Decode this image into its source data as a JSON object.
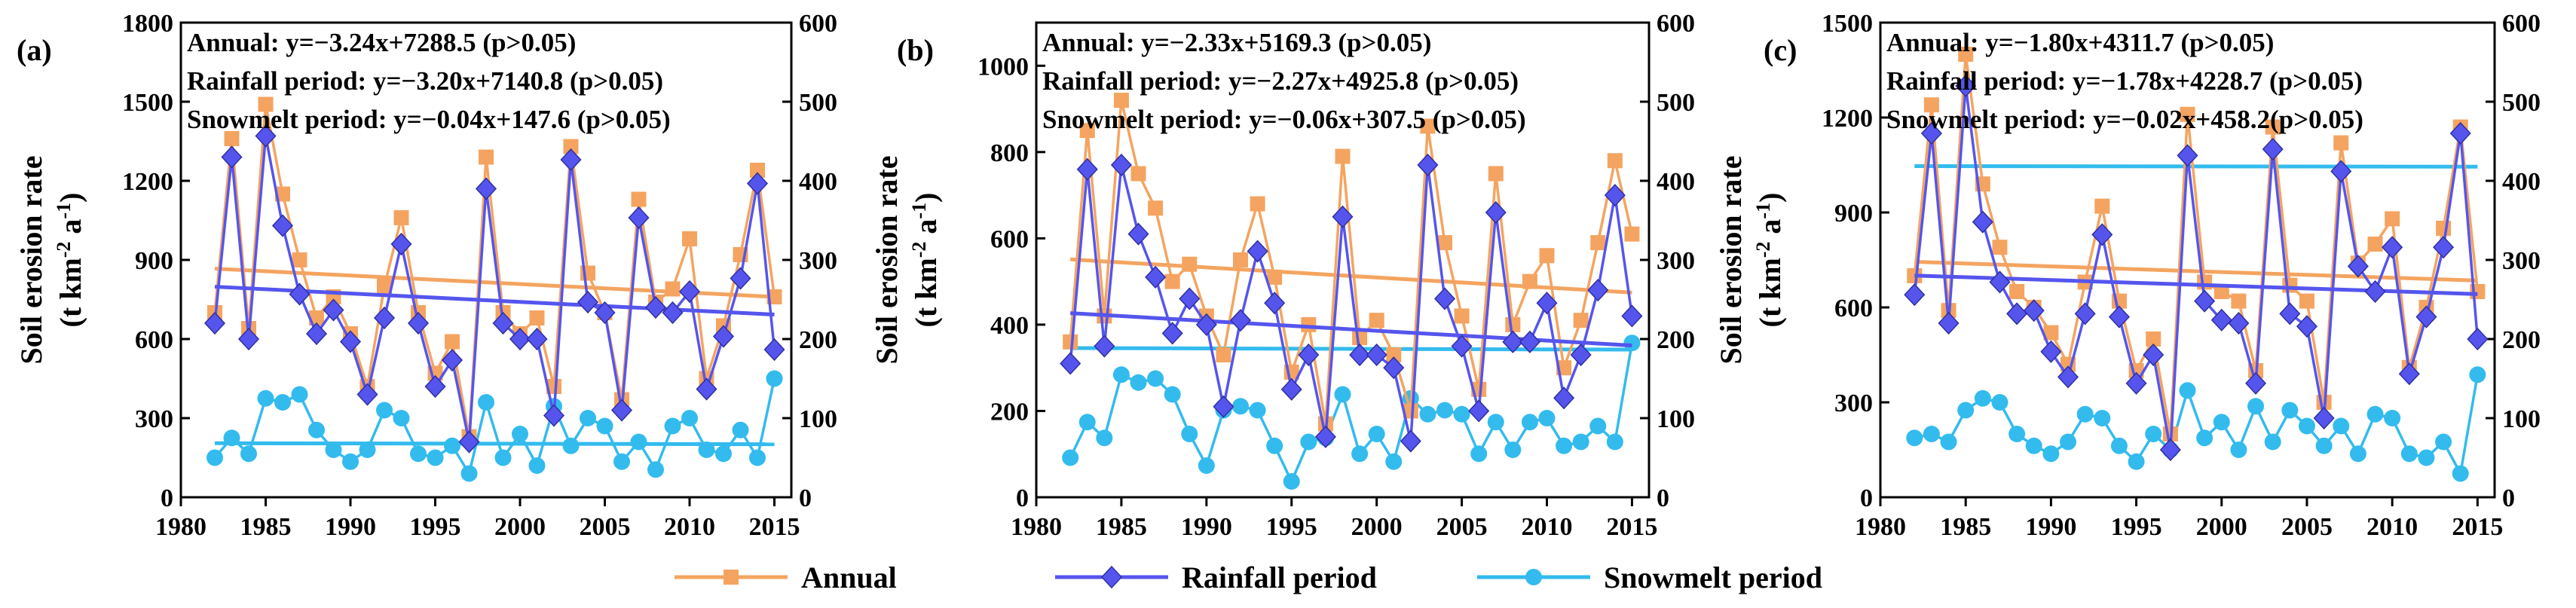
{
  "legend": {
    "annual": "Annual",
    "rainfall": "Rainfall period",
    "snowmelt": "Snowmelt period"
  },
  "colors": {
    "annual": "#F4A460",
    "rainfall": "#5555EE",
    "snowmelt": "#33BBEE"
  },
  "y_axis_label": {
    "line1": "Soil erosion rate",
    "line2": "(t km",
    "sup1": "-2",
    "mid": " a",
    "sup2": "-1",
    "end": ")"
  },
  "chart_data": [
    {
      "type": "line",
      "panel_label": "(a)",
      "annotations": [
        "Annual: y=−3.24x+7288.5 (p>0.05)",
        "Rainfall period: y=−3.20x+7140.8 (p>0.05)",
        "Snowmelt period: y=−0.04x+147.6 (p>0.05)"
      ],
      "x": [
        1982,
        1983,
        1984,
        1985,
        1986,
        1987,
        1988,
        1989,
        1990,
        1991,
        1992,
        1993,
        1994,
        1995,
        1996,
        1997,
        1998,
        1999,
        2000,
        2001,
        2002,
        2003,
        2004,
        2005,
        2006,
        2007,
        2008,
        2009,
        2010,
        2011,
        2012,
        2013,
        2014,
        2015
      ],
      "xlim": [
        1980,
        2016
      ],
      "xticks": [
        1980,
        1985,
        1990,
        1995,
        2000,
        2005,
        2010,
        2015
      ],
      "ylim": [
        0,
        1800
      ],
      "yticks": [
        0,
        300,
        600,
        900,
        1200,
        1500,
        1800
      ],
      "ylim_right": [
        0,
        600
      ],
      "yticks_right": [
        0,
        100,
        200,
        300,
        400,
        500,
        600
      ],
      "series": [
        {
          "name": "Annual",
          "axis": "left",
          "values": [
            700,
            1360,
            640,
            1490,
            1150,
            900,
            680,
            760,
            620,
            420,
            800,
            1060,
            700,
            470,
            590,
            230,
            1290,
            700,
            620,
            680,
            420,
            1330,
            850,
            700,
            370,
            1130,
            740,
            790,
            980,
            450,
            650,
            920,
            1240,
            760
          ],
          "trend": {
            "slope": -3.24,
            "intercept": 7288.5
          }
        },
        {
          "name": "Rainfall period",
          "axis": "left",
          "values": [
            660,
            1290,
            600,
            1370,
            1030,
            770,
            620,
            710,
            590,
            390,
            680,
            960,
            660,
            420,
            520,
            210,
            1170,
            660,
            600,
            600,
            310,
            1280,
            740,
            700,
            330,
            1060,
            720,
            700,
            780,
            410,
            610,
            830,
            1190,
            560
          ],
          "trend": {
            "slope": -3.2,
            "intercept": 7140.8
          }
        },
        {
          "name": "Snowmelt period",
          "axis": "right",
          "values": [
            50,
            75,
            55,
            125,
            120,
            130,
            85,
            60,
            45,
            60,
            110,
            100,
            55,
            50,
            65,
            30,
            120,
            50,
            80,
            40,
            115,
            65,
            100,
            90,
            45,
            70,
            35,
            90,
            100,
            60,
            55,
            85,
            50,
            150
          ],
          "trend": {
            "slope": -0.04,
            "intercept": 147.6
          }
        }
      ]
    },
    {
      "type": "line",
      "panel_label": "(b)",
      "annotations": [
        "Annual: y=−2.33x+5169.3 (p>0.05)",
        "Rainfall period: y=−2.27x+4925.8 (p>0.05)",
        "Snowmelt period: y=−0.06x+307.5 (p>0.05)"
      ],
      "x": [
        1982,
        1983,
        1984,
        1985,
        1986,
        1987,
        1988,
        1989,
        1990,
        1991,
        1992,
        1993,
        1994,
        1995,
        1996,
        1997,
        1998,
        1999,
        2000,
        2001,
        2002,
        2003,
        2004,
        2005,
        2006,
        2007,
        2008,
        2009,
        2010,
        2011,
        2012,
        2013,
        2014,
        2015
      ],
      "xlim": [
        1980,
        2016
      ],
      "xticks": [
        1980,
        1985,
        1990,
        1995,
        2000,
        2005,
        2010,
        2015
      ],
      "ylim": [
        0,
        1100
      ],
      "yticks": [
        0,
        200,
        400,
        600,
        800,
        1000
      ],
      "ylim_right": [
        0,
        600
      ],
      "yticks_right": [
        0,
        100,
        200,
        300,
        400,
        500,
        600
      ],
      "series": [
        {
          "name": "Annual",
          "axis": "left",
          "values": [
            360,
            850,
            420,
            920,
            750,
            670,
            500,
            540,
            420,
            330,
            550,
            680,
            510,
            290,
            400,
            170,
            790,
            370,
            410,
            330,
            200,
            860,
            590,
            420,
            250,
            750,
            400,
            500,
            560,
            300,
            410,
            590,
            780,
            610
          ],
          "trend": {
            "slope": -2.33,
            "intercept": 5169.3
          }
        },
        {
          "name": "Rainfall period",
          "axis": "left",
          "values": [
            310,
            760,
            350,
            770,
            610,
            510,
            380,
            460,
            400,
            210,
            410,
            570,
            450,
            250,
            330,
            140,
            650,
            330,
            330,
            300,
            130,
            770,
            460,
            350,
            200,
            660,
            360,
            360,
            450,
            230,
            330,
            480,
            700,
            420
          ],
          "trend": {
            "slope": -2.27,
            "intercept": 4925.8
          }
        },
        {
          "name": "Snowmelt period",
          "axis": "right",
          "values": [
            50,
            95,
            75,
            155,
            145,
            150,
            130,
            80,
            40,
            110,
            115,
            110,
            65,
            20,
            70,
            75,
            130,
            55,
            80,
            45,
            125,
            105,
            110,
            105,
            55,
            95,
            60,
            95,
            100,
            65,
            70,
            90,
            70,
            195
          ],
          "trend": {
            "slope": -0.06,
            "intercept": 307.5
          }
        }
      ]
    },
    {
      "type": "line",
      "panel_label": "(c)",
      "annotations": [
        "Annual: y=−1.80x+4311.7 (p>0.05)",
        "Rainfall period: y=−1.78x+4228.7 (p>0.05)",
        "Snowmelt period: y=−0.02x+458.2(p>0.05)"
      ],
      "x": [
        1982,
        1983,
        1984,
        1985,
        1986,
        1987,
        1988,
        1989,
        1990,
        1991,
        1992,
        1993,
        1994,
        1995,
        1996,
        1997,
        1998,
        1999,
        2000,
        2001,
        2002,
        2003,
        2004,
        2005,
        2006,
        2007,
        2008,
        2009,
        2010,
        2011,
        2012,
        2013,
        2014,
        2015
      ],
      "xlim": [
        1980,
        2016
      ],
      "xticks": [
        1980,
        1985,
        1990,
        1995,
        2000,
        2005,
        2010,
        2015
      ],
      "ylim": [
        0,
        1500
      ],
      "yticks": [
        0,
        300,
        600,
        900,
        1200,
        1500
      ],
      "ylim_right": [
        0,
        600
      ],
      "yticks_right": [
        0,
        100,
        200,
        300,
        400,
        500,
        600
      ],
      "series": [
        {
          "name": "Annual",
          "axis": "left",
          "values": [
            700,
            1240,
            590,
            1400,
            990,
            790,
            650,
            600,
            520,
            420,
            680,
            920,
            620,
            400,
            500,
            200,
            1210,
            680,
            650,
            620,
            400,
            1170,
            670,
            620,
            300,
            1120,
            740,
            800,
            880,
            410,
            600,
            850,
            1170,
            650
          ],
          "trend": {
            "slope": -1.8,
            "intercept": 4311.7
          }
        },
        {
          "name": "Rainfall period",
          "axis": "left",
          "values": [
            640,
            1150,
            550,
            1300,
            870,
            680,
            580,
            590,
            460,
            380,
            580,
            830,
            570,
            360,
            450,
            150,
            1080,
            620,
            560,
            550,
            360,
            1100,
            580,
            540,
            250,
            1030,
            730,
            650,
            790,
            390,
            570,
            790,
            1150,
            500
          ],
          "trend": {
            "slope": -1.78,
            "intercept": 4228.7
          }
        },
        {
          "name": "Snowmelt period",
          "axis": "right",
          "values": [
            75,
            80,
            70,
            110,
            125,
            120,
            80,
            65,
            55,
            70,
            105,
            100,
            65,
            45,
            80,
            60,
            135,
            75,
            95,
            60,
            115,
            70,
            110,
            90,
            65,
            90,
            55,
            105,
            100,
            55,
            50,
            70,
            30,
            155
          ],
          "trend": {
            "slope": -0.02,
            "intercept": 458.2
          }
        }
      ]
    }
  ]
}
